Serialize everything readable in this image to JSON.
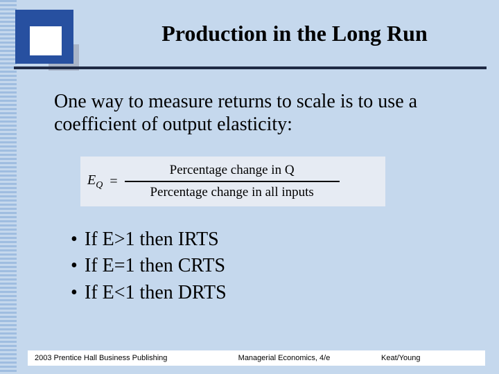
{
  "colors": {
    "slide_bg": "#c5d8ed",
    "stripe_a": "#9fbde0",
    "stripe_b": "#c5d8ed",
    "corner_dark": "#2750a0",
    "corner_light": "#ffffff",
    "corner_shadow": "#a9b5c8",
    "rule": "#1f2a44",
    "formula_bg": "#e6ebf3",
    "text": "#000000",
    "footer_bg": "#ffffff"
  },
  "fonts": {
    "body_family": "Times New Roman",
    "footer_family": "Arial",
    "title_size_pt": 32,
    "body_size_pt": 28,
    "formula_size_pt": 20,
    "footer_size_pt": 11
  },
  "title": "Production in the Long Run",
  "intro": "One way to measure returns to scale is to use a coefficient of output elasticity:",
  "formula": {
    "lhs_base": "E",
    "lhs_sub": "Q",
    "eq": "=",
    "numerator": "Percentage change in Q",
    "denominator": "Percentage change in all inputs"
  },
  "bullets": [
    "If E>1 then IRTS",
    "If E=1 then CRTS",
    "If E<1 then DRTS"
  ],
  "footer": {
    "left": "2003 Prentice Hall Business Publishing",
    "middle": "Managerial Economics, 4/e",
    "right": "Keat/Young"
  }
}
